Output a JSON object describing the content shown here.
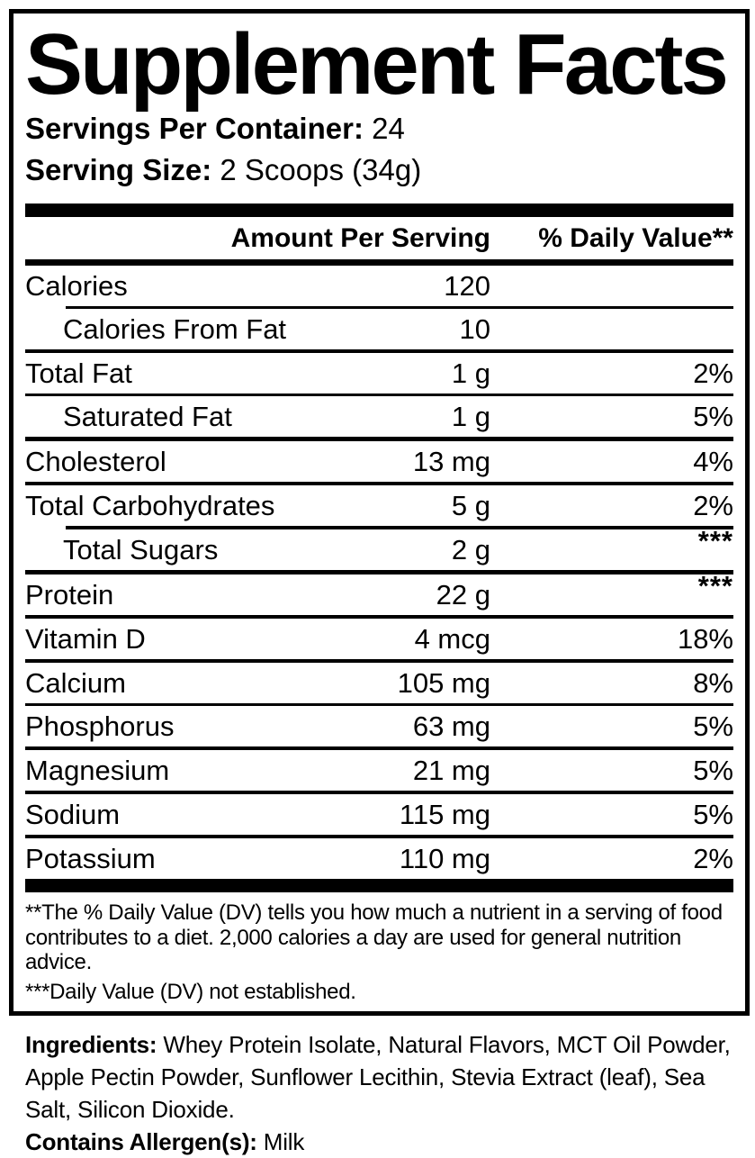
{
  "label": {
    "title": "Supplement Facts",
    "servings_per_container": {
      "label": "Servings Per Container:",
      "value": " 24"
    },
    "serving_size": {
      "label": "Serving Size:",
      "value": " 2 Scoops (34g)"
    },
    "columns": {
      "amount": "Amount Per Serving",
      "daily_value": "% Daily Value**"
    },
    "rows": [
      {
        "name": "Calories",
        "amount": "120",
        "dv": ""
      },
      {
        "name": "Calories From Fat",
        "amount": "10",
        "dv": ""
      },
      {
        "name": "Total Fat",
        "amount": "1 g",
        "dv": "2%"
      },
      {
        "name": "Saturated Fat",
        "amount": "1 g",
        "dv": "5%"
      },
      {
        "name": "Cholesterol",
        "amount": "13 mg",
        "dv": "4%"
      },
      {
        "name": "Total Carbohydrates",
        "amount": "5 g",
        "dv": "2%"
      },
      {
        "name": "Total Sugars",
        "amount": "2 g",
        "dv": "***"
      },
      {
        "name": "Protein",
        "amount": "22 g",
        "dv": "***"
      },
      {
        "name": "Vitamin D",
        "amount": "4 mcg",
        "dv": "18%"
      },
      {
        "name": "Calcium",
        "amount": "105 mg",
        "dv": "8%"
      },
      {
        "name": "Phosphorus",
        "amount": "63 mg",
        "dv": "5%"
      },
      {
        "name": "Magnesium",
        "amount": "21 mg",
        "dv": "5%"
      },
      {
        "name": "Sodium",
        "amount": "115 mg",
        "dv": "5%"
      },
      {
        "name": "Potassium",
        "amount": "110 mg",
        "dv": "2%"
      }
    ],
    "footnotes": {
      "daily_value": "**The % Daily Value (DV) tells you how much a nutrient in a serving of food contributes to a diet. 2,000 calories a day are used for general nutrition advice.",
      "not_established": "***Daily Value (DV) not established."
    }
  },
  "ingredients": {
    "label": "Ingredients:",
    "text": " Whey Protein Isolate, Natural Flavors, MCT Oil Powder, Apple Pectin Powder, Sunflower Lecithin, Stevia Extract (leaf), Sea Salt, Silicon Dioxide.",
    "allergen_label": "Contains Allergen(s):",
    "allergen_value": " Milk"
  },
  "colors": {
    "text": "#000000",
    "background": "#ffffff"
  }
}
